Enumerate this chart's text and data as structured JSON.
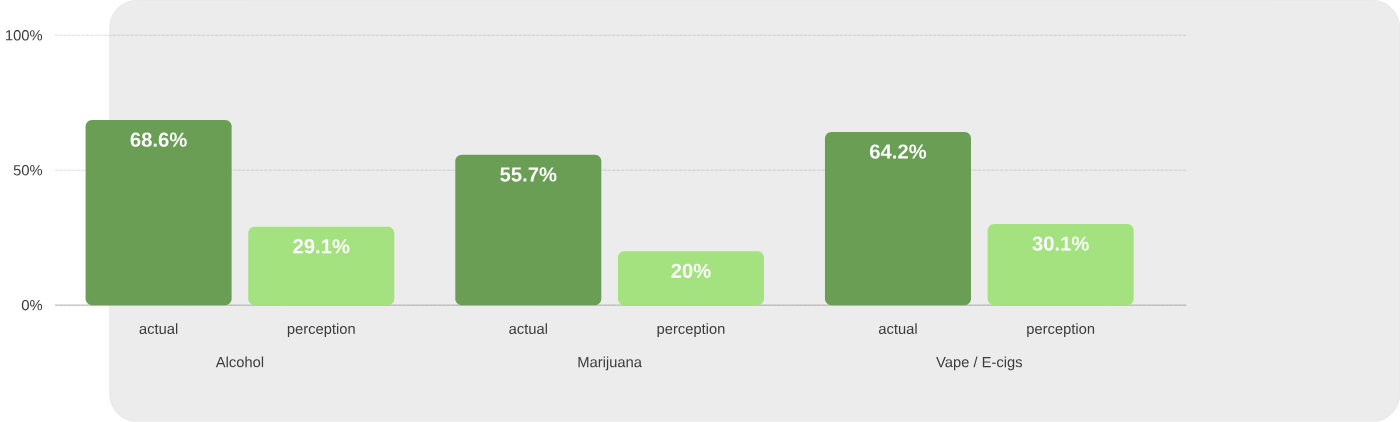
{
  "chart_data": {
    "type": "bar",
    "categories": [
      "Alcohol",
      "Marijuana",
      "Vape / E-cigs"
    ],
    "series": [
      {
        "name": "actual",
        "color": "#6a9e55",
        "values": [
          68.6,
          55.7,
          64.2
        ],
        "value_labels": [
          "68.6%",
          "55.7%",
          "64.2%"
        ]
      },
      {
        "name": "perception",
        "color": "#a3e27f",
        "values": [
          29.1,
          20,
          30.1
        ],
        "value_labels": [
          "29.1%",
          "20%",
          "30.1%"
        ]
      }
    ],
    "ylim": [
      0,
      100
    ],
    "yticks": [
      {
        "value": 0,
        "label": "0%"
      },
      {
        "value": 50,
        "label": "50%"
      },
      {
        "value": 100,
        "label": "100%"
      }
    ],
    "grid": "y"
  }
}
